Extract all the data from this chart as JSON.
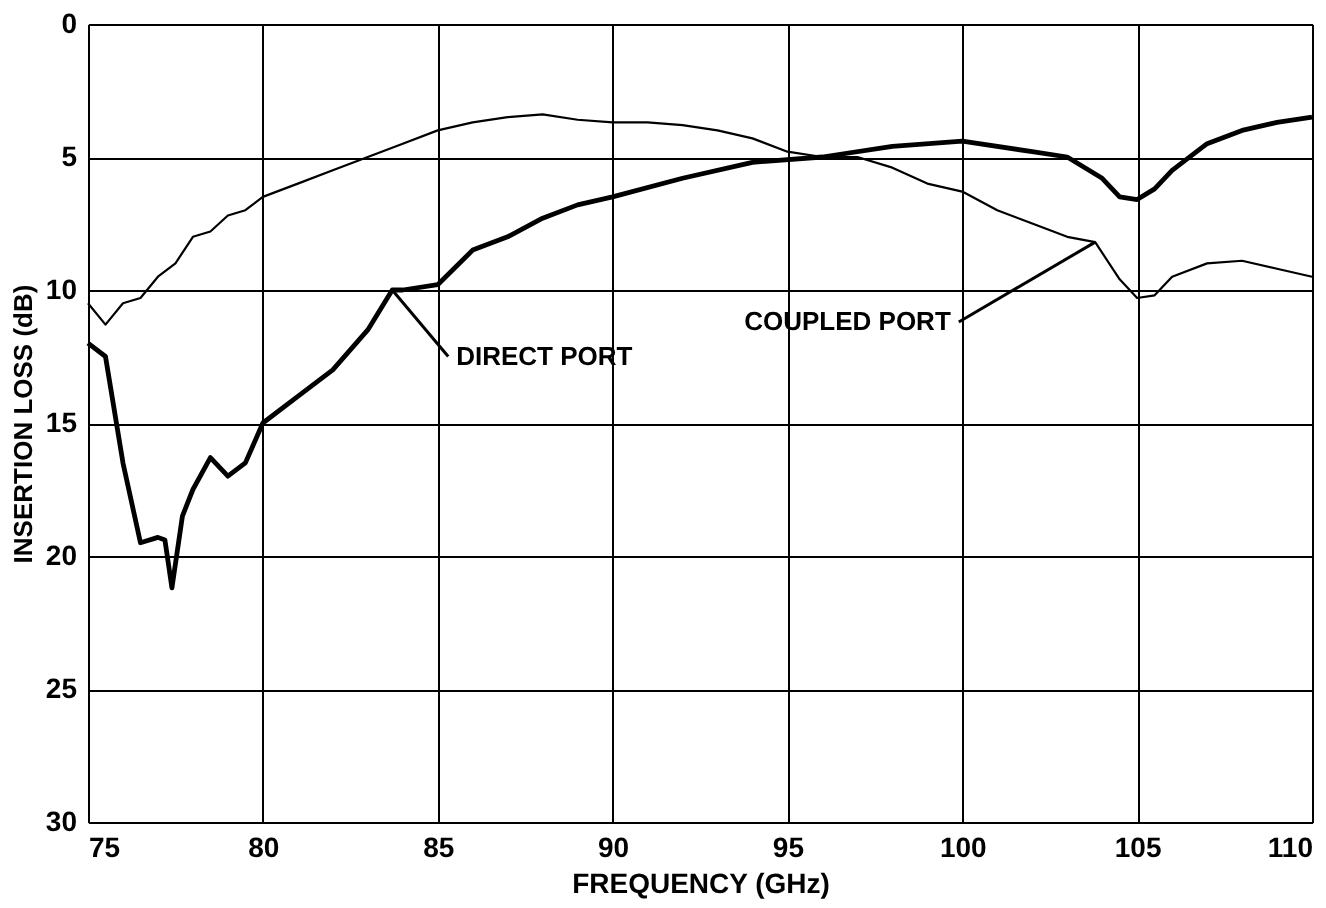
{
  "chart_data": {
    "type": "line",
    "xlabel": "FREQUENCY (GHz)",
    "ylabel": "INSERTION LOSS (dB)",
    "xlim": [
      75,
      110
    ],
    "xticks": [
      75,
      80,
      85,
      90,
      95,
      100,
      105,
      110
    ],
    "ylim": [
      30,
      0
    ],
    "yticks": [
      0,
      5,
      10,
      15,
      20,
      25,
      30
    ],
    "grid": true,
    "marker": "none",
    "line_style": "solid",
    "series": [
      {
        "color": "#000000",
        "x": [
          75,
          75.5,
          76,
          76.5,
          77,
          77.5,
          78,
          78.5,
          79,
          79.5,
          80,
          81,
          82,
          83,
          84,
          85,
          86,
          87,
          88,
          89,
          90,
          91,
          92,
          93,
          94,
          95,
          96,
          97,
          98,
          99,
          100,
          101,
          102,
          103,
          103.8,
          104.5,
          105,
          105.5,
          106,
          107,
          108,
          109,
          110
        ],
        "values": [
          10.5,
          11.3,
          10.5,
          10.3,
          9.5,
          9,
          8,
          7.8,
          7.2,
          7,
          6.5,
          6,
          5.5,
          5,
          4.5,
          4,
          3.7,
          3.5,
          3.4,
          3.6,
          3.7,
          3.7,
          3.8,
          4,
          4.3,
          4.8,
          5,
          5,
          5.4,
          6,
          6.3,
          7,
          7.5,
          8,
          8.2,
          9.6,
          10.3,
          10.2,
          9.5,
          9,
          8.9,
          9.2,
          9.5
        ]
      },
      {
        "color": "#000000",
        "x": [
          75,
          75.5,
          76,
          76.5,
          77,
          77.2,
          77.4,
          77.7,
          78,
          78.5,
          79,
          79.5,
          80,
          81,
          82,
          83,
          83.7,
          84,
          85,
          86,
          87,
          88,
          89,
          90,
          92,
          94,
          96,
          98,
          100,
          102,
          103,
          104,
          104.5,
          105,
          105.5,
          106,
          107,
          108,
          109,
          110
        ],
        "values": [
          12,
          12.5,
          16.5,
          19.5,
          19.3,
          19.4,
          21.2,
          18.5,
          17.5,
          16.3,
          17,
          16.5,
          15,
          14,
          13,
          11.5,
          10,
          10,
          9.8,
          8.5,
          8,
          7.3,
          6.8,
          6.5,
          5.8,
          5.2,
          5,
          4.6,
          4.4,
          4.8,
          5,
          5.8,
          6.5,
          6.6,
          6.2,
          5.5,
          4.5,
          4,
          3.7,
          3.5
        ]
      }
    ],
    "annotations": [
      {
        "text": "COUPLED PORT",
        "x": 103.8,
        "y": 8.2
      },
      {
        "text": "DIRECT PORT",
        "x": 83.7,
        "y": 10
      }
    ]
  }
}
